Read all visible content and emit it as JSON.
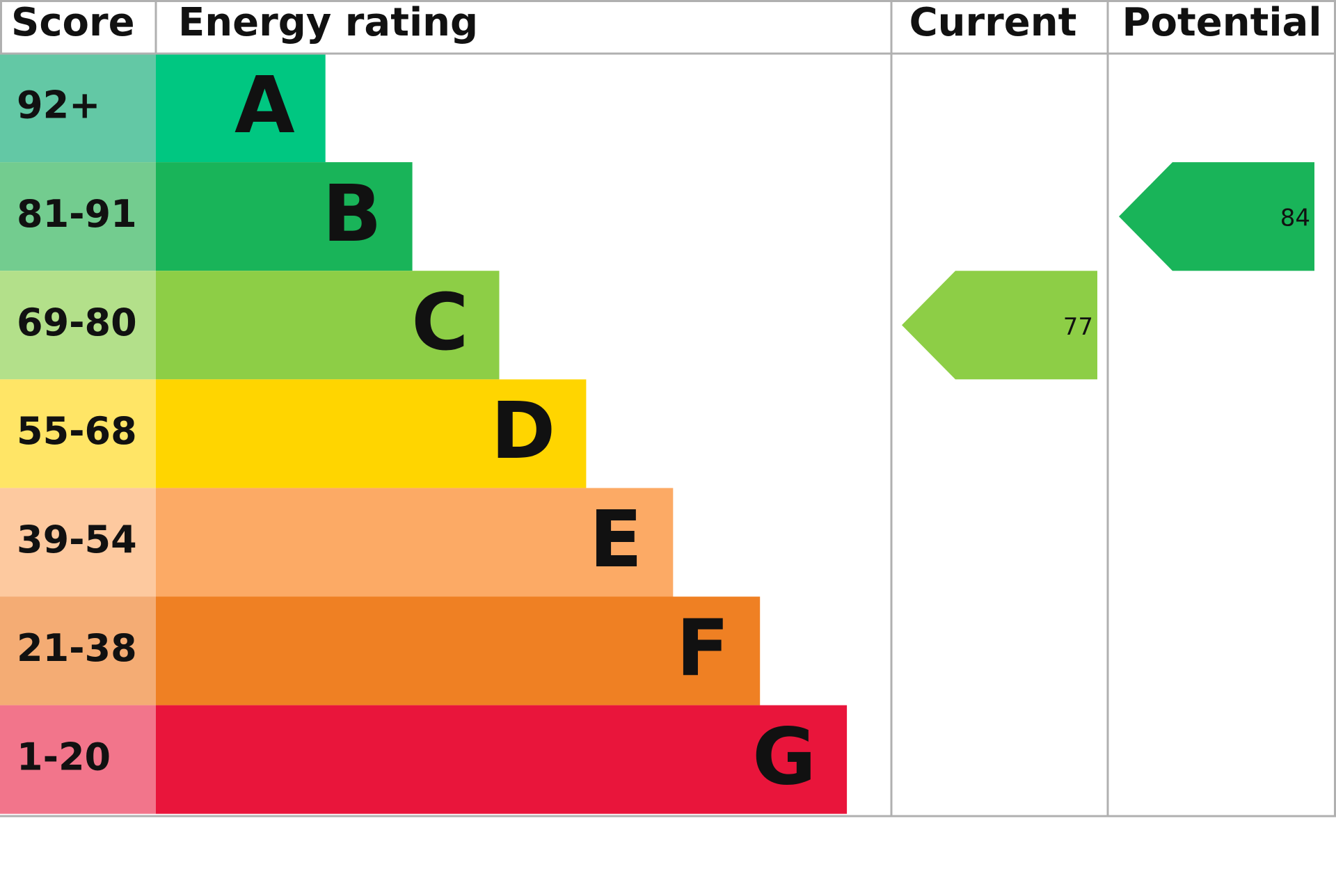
{
  "chart_data": {
    "type": "energy-rating",
    "headers": {
      "score": "Score",
      "rating": "Energy rating",
      "current": "Current",
      "potential": "Potential"
    },
    "bands": [
      {
        "score": "92+",
        "letter": "A",
        "score_color": "#63c8a5",
        "color": "#00c781"
      },
      {
        "score": "81-91",
        "letter": "B",
        "score_color": "#73cc8f",
        "color": "#19b459"
      },
      {
        "score": "69-80",
        "letter": "C",
        "score_color": "#b3e08a",
        "color": "#8dce46"
      },
      {
        "score": "55-68",
        "letter": "D",
        "score_color": "#ffe566",
        "color": "#ffd500"
      },
      {
        "score": "39-54",
        "letter": "E",
        "score_color": "#fdc99f",
        "color": "#fcaa65"
      },
      {
        "score": "21-38",
        "letter": "F",
        "score_color": "#f4ac74",
        "color": "#ef8023"
      },
      {
        "score": "1-20",
        "letter": "G",
        "score_color": "#f2758b",
        "color": "#e9153b"
      }
    ],
    "current": {
      "value": 77
    },
    "potential": {
      "value": 84
    }
  }
}
